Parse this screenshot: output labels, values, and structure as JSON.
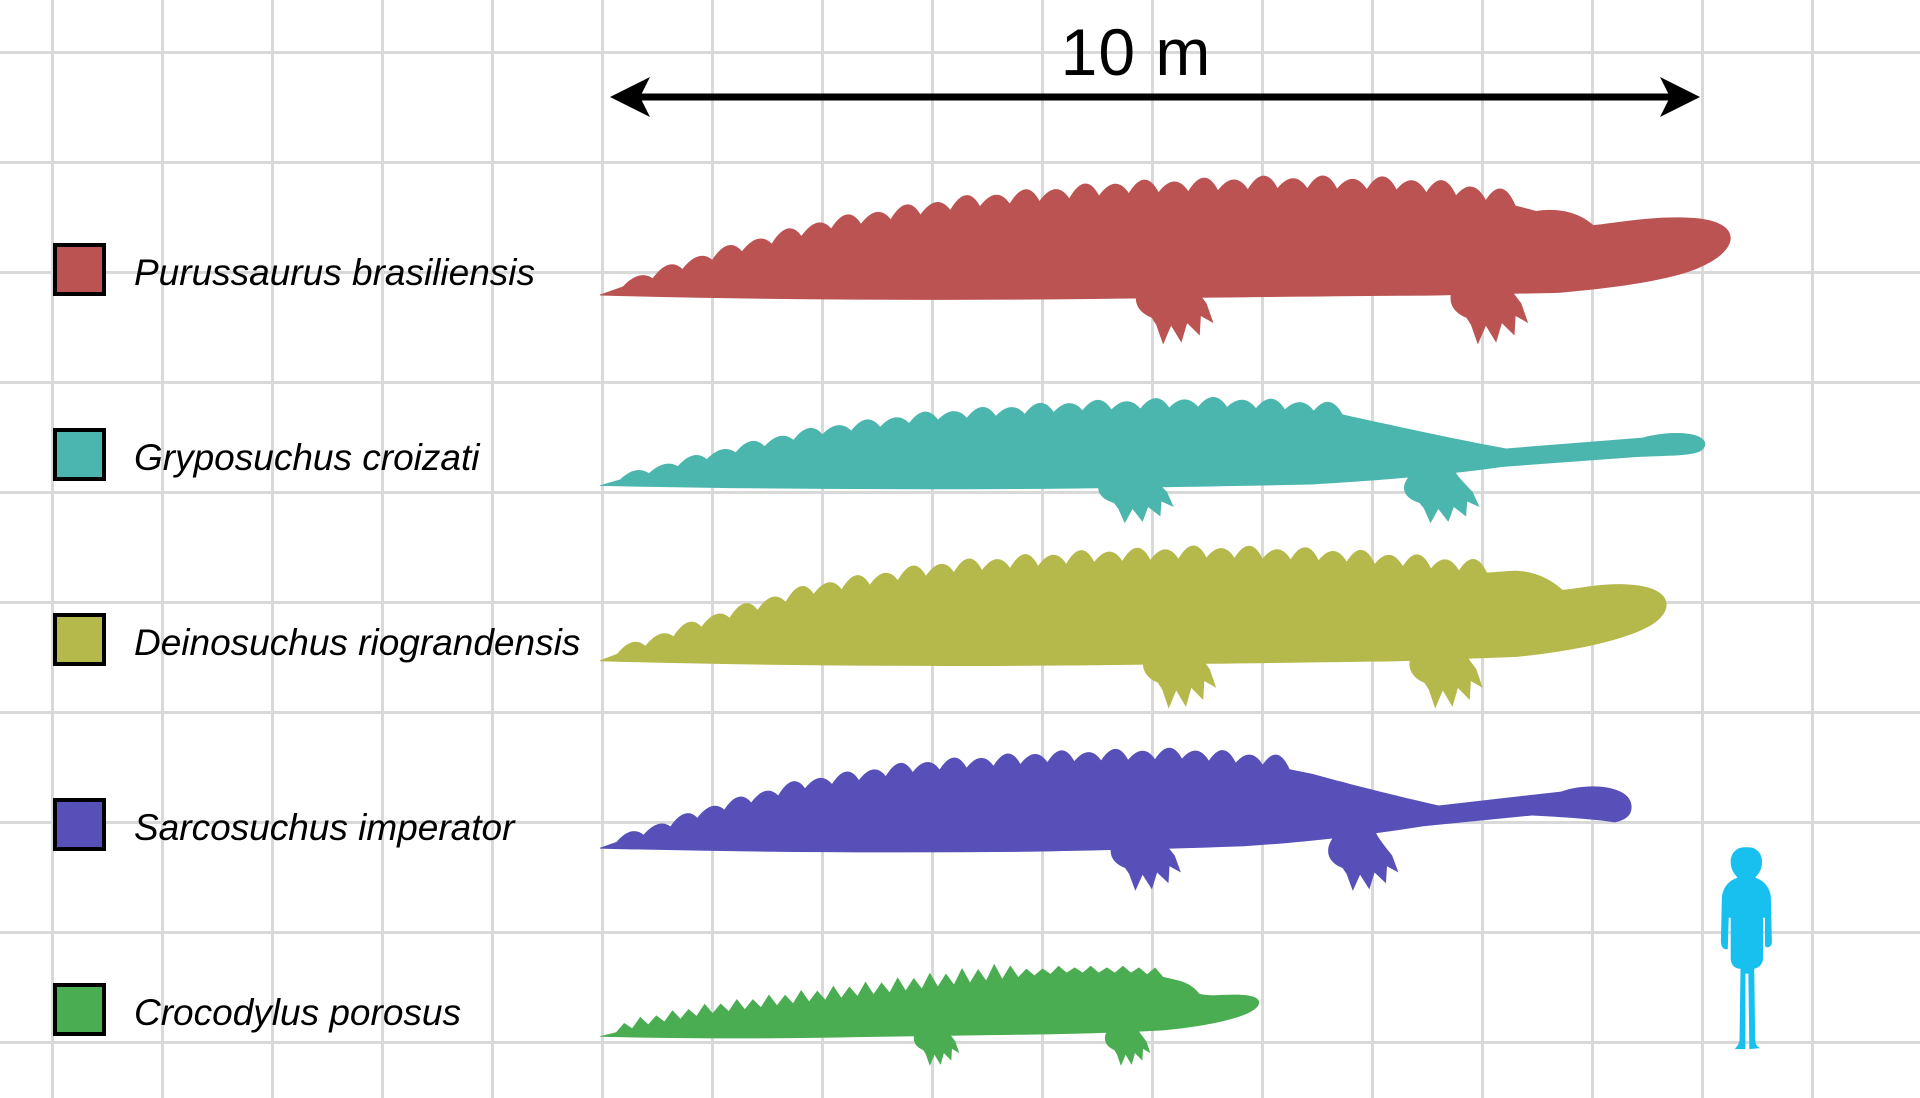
{
  "figure": {
    "description": "Size comparison of giant crocodylians on a 1-meter grid with human for scale"
  },
  "scale_bar": {
    "label": "10 m"
  },
  "legend": {
    "items": [
      {
        "label": "Purussaurus brasiliensis",
        "color": "#BC5353"
      },
      {
        "label": "Gryposuchus croizati",
        "color": "#4BB6AE"
      },
      {
        "label": "Deinosuchus riograndensis",
        "color": "#B5B84A"
      },
      {
        "label": "Sarcosuchus imperator",
        "color": "#5650B8"
      },
      {
        "label": "Crocodylus porosus",
        "color": "#4BAD52"
      }
    ]
  },
  "chart_data": {
    "type": "size-comparison",
    "unit": "meters",
    "grid_square_m": 1,
    "scale_bar_m": 10,
    "series": [
      {
        "name": "Purussaurus brasiliensis",
        "length_m": 10.5,
        "color": "#BC5353"
      },
      {
        "name": "Gryposuchus croizati",
        "length_m": 10.2,
        "color": "#4BB6AE"
      },
      {
        "name": "Deinosuchus riograndensis",
        "length_m": 9.9,
        "color": "#B5B84A"
      },
      {
        "name": "Sarcosuchus imperator",
        "length_m": 9.5,
        "color": "#5650B8"
      },
      {
        "name": "Crocodylus porosus",
        "length_m": 6.15,
        "color": "#4BAD52"
      }
    ],
    "human_reference": {
      "height_m": 1.87,
      "color": "#18C0F0"
    }
  }
}
